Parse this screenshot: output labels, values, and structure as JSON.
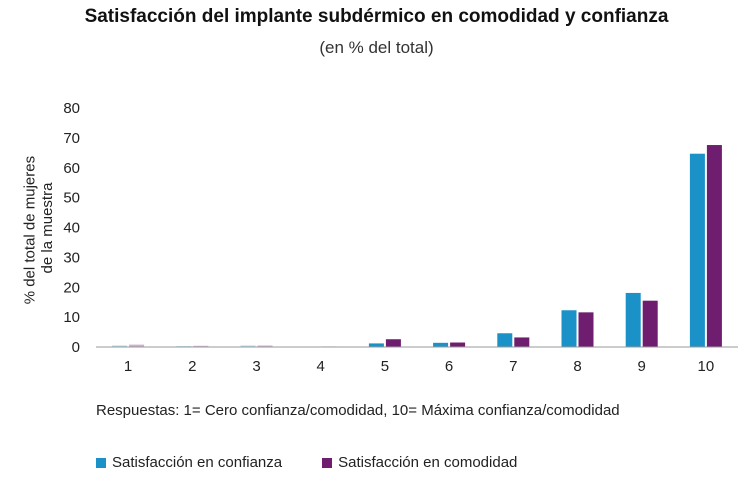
{
  "colors": {
    "confianza": "#1a92c8",
    "comodidad": "#6e1d6f",
    "axis": "#999999"
  },
  "chart_data": {
    "type": "bar",
    "title": "Satisfacción del implante subdérmico en comodidad y confianza",
    "subtitle": "(en % del total)",
    "ylabel_lines": [
      "% del total de mujeres",
      "de la muestra"
    ],
    "xlabel": "",
    "ylim": [
      0,
      80
    ],
    "yticks": [
      0,
      10,
      20,
      30,
      40,
      50,
      60,
      70,
      80
    ],
    "categories": [
      "1",
      "2",
      "3",
      "4",
      "5",
      "6",
      "7",
      "8",
      "9",
      "10"
    ],
    "series": [
      {
        "name": "Satisfacción en confianza",
        "color": "#1a92c8",
        "values": [
          0.5,
          0.3,
          0.5,
          0.1,
          1.2,
          1.4,
          4.6,
          12.3,
          18.1,
          64.7
        ]
      },
      {
        "name": "Satisfacción en comodidad",
        "color": "#6e1d6f",
        "values": [
          0.8,
          0.4,
          0.5,
          0.2,
          2.6,
          1.5,
          3.2,
          11.6,
          15.5,
          67.6
        ]
      }
    ],
    "note": "Respuestas: 1= Cero confianza/comodidad, 10= Máxima confianza/comodidad"
  }
}
